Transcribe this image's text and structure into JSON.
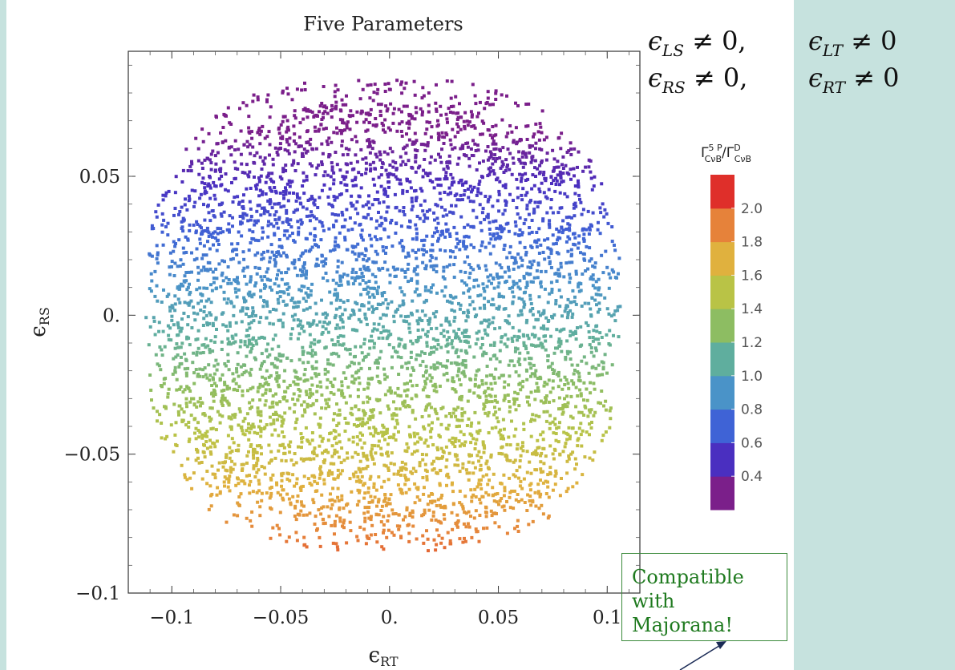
{
  "chart_data": {
    "type": "scatter",
    "title": "Five Parameters",
    "xlabel": "ε_RT",
    "ylabel": "ε_RS",
    "xlim": [
      -0.12,
      0.115
    ],
    "ylim": [
      -0.1,
      0.095
    ],
    "x_ticks": [
      {
        "value": -0.1,
        "label": "−0.1"
      },
      {
        "value": -0.05,
        "label": "−0.05"
      },
      {
        "value": 0,
        "label": "0."
      },
      {
        "value": 0.05,
        "label": "0.05"
      },
      {
        "value": 0.1,
        "label": "0.1"
      }
    ],
    "y_ticks": [
      {
        "value": -0.1,
        "label": "−0.1"
      },
      {
        "value": -0.05,
        "label": "−0.05"
      },
      {
        "value": 0,
        "label": "0."
      },
      {
        "value": 0.05,
        "label": "0.05"
      }
    ],
    "grid": false,
    "point_region": {
      "x_range": [
        -0.112,
        0.107
      ],
      "y_range": [
        -0.085,
        0.085
      ]
    },
    "color_variable": "Γ^{5P}_{CνB}/Γ^{D}_{CνB}",
    "colorbar": {
      "title": "Γ5P CνB/ΓD CνB",
      "range": [
        0.2,
        2.2
      ],
      "bands": [
        {
          "lo": 0.2,
          "hi": 0.4,
          "color": "#7b1f8a"
        },
        {
          "lo": 0.4,
          "hi": 0.6,
          "color": "#4a2fc0"
        },
        {
          "lo": 0.6,
          "hi": 0.8,
          "color": "#3f63d6"
        },
        {
          "lo": 0.8,
          "hi": 1.0,
          "color": "#4a93c8"
        },
        {
          "lo": 1.0,
          "hi": 1.2,
          "color": "#5fae9e"
        },
        {
          "lo": 1.2,
          "hi": 1.4,
          "color": "#8dbd62"
        },
        {
          "lo": 1.4,
          "hi": 1.6,
          "color": "#b9c346"
        },
        {
          "lo": 1.6,
          "hi": 1.8,
          "color": "#e0b13e"
        },
        {
          "lo": 1.8,
          "hi": 2.0,
          "color": "#e6823a"
        },
        {
          "lo": 2.0,
          "hi": 2.2,
          "color": "#df2f2a"
        }
      ],
      "tick_labels": [
        "2.0",
        "1.8",
        "1.6",
        "1.4",
        "1.2",
        "1.0",
        "0.8",
        "0.6",
        "0.4"
      ],
      "tick_values": [
        2.0,
        1.8,
        1.6,
        1.4,
        1.2,
        1.0,
        0.8,
        0.6,
        0.4
      ]
    }
  },
  "legend_title": {
    "main": "Γ",
    "sup": "5 P",
    "sub": "CνB",
    "sep": "/Γ",
    "sup2": "D",
    "sub2": "CνB"
  },
  "conditions": [
    [
      {
        "eps": "ϵ",
        "sub": "LS",
        "rel": " ≠ 0,"
      },
      {
        "eps": "ϵ",
        "sub": "LT",
        "rel": " ≠ 0"
      }
    ],
    [
      {
        "eps": "ϵ",
        "sub": "RS",
        "rel": " ≠ 0,"
      },
      {
        "eps": "ϵ",
        "sub": "RT",
        "rel": " ≠ 0"
      }
    ]
  ],
  "axis_labels": {
    "x": {
      "eps": "ϵ",
      "sub": "RT"
    },
    "y": {
      "eps": "ϵ",
      "sub": "RS"
    }
  },
  "callout": {
    "line1": "Compatible with",
    "line2": "Majorana!"
  }
}
